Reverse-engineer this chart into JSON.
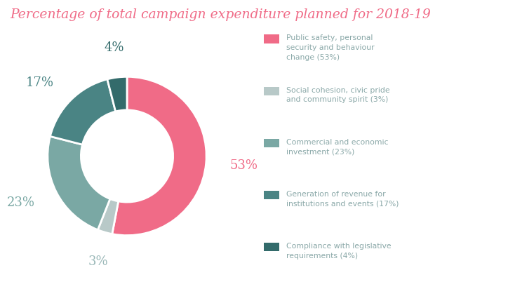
{
  "title": "Percentage of total campaign expenditure planned for 2018-19",
  "title_color": "#f06b87",
  "title_fontsize": 13.5,
  "slices": [
    53,
    3,
    23,
    17,
    4
  ],
  "colors": [
    "#f06b87",
    "#b8c9c8",
    "#7aa8a4",
    "#4a8484",
    "#336b6b"
  ],
  "label_texts": [
    "53%",
    "3%",
    "23%",
    "17%",
    "4%"
  ],
  "label_colors": [
    "#f06b87",
    "#9ab8b8",
    "#7aa8a4",
    "#4a8484",
    "#336b6b"
  ],
  "legend_labels": [
    "Public safety, personal\nsecurity and behaviour\nchange (53%)",
    "Social cohesion, civic pride\nand community spirit (3%)",
    "Commercial and economic\ninvestment (23%)",
    "Generation of revenue for\ninstitutions and events (17%)",
    "Compliance with legislative\nrequirements (4%)"
  ],
  "legend_colors": [
    "#f06b87",
    "#b8c9c8",
    "#7aa8a4",
    "#4a8484",
    "#336b6b"
  ],
  "donut_width": 0.42,
  "background_color": "#ffffff",
  "legend_text_color": "#8aa8a8"
}
